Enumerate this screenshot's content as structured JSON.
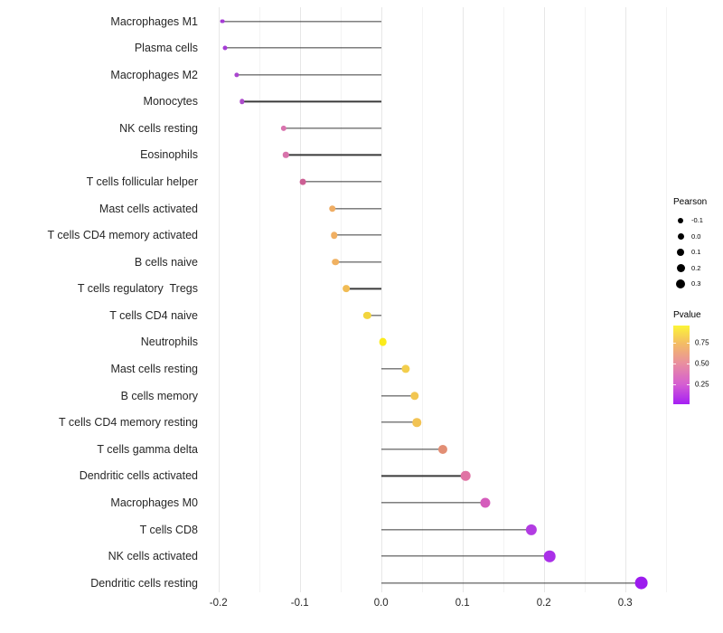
{
  "chart_data": {
    "type": "lollipop",
    "orientation": "horizontal",
    "title": "",
    "xlabel": "",
    "ylabel": "",
    "xlim": [
      -0.215,
      0.36
    ],
    "grid": "vertical only, light gray, major every 0.1 with minor every 0.05",
    "x_ticks": [
      {
        "label": "-0.2",
        "value": -0.2
      },
      {
        "label": "-0.1",
        "value": -0.1
      },
      {
        "label": "0.0",
        "value": 0.0
      },
      {
        "label": "0.1",
        "value": 0.1
      },
      {
        "label": "0.2",
        "value": 0.2
      },
      {
        "label": "0.3",
        "value": 0.3
      }
    ],
    "grid_values": [
      -0.2,
      -0.15,
      -0.1,
      -0.05,
      0.0,
      0.05,
      0.1,
      0.15,
      0.2,
      0.25,
      0.3,
      0.35
    ],
    "stem_color": "#3b3b3b",
    "points": [
      {
        "label": "Macrophages M1",
        "pearson": -0.195,
        "pvalue": 0.1,
        "color": "#a63bd6"
      },
      {
        "label": "Plasma cells",
        "pearson": -0.192,
        "pvalue": 0.11,
        "color": "#a53cd5"
      },
      {
        "label": "Macrophages M2",
        "pearson": -0.178,
        "pvalue": 0.13,
        "color": "#aa46cf"
      },
      {
        "label": "Monocytes",
        "pearson": -0.171,
        "pvalue": 0.14,
        "color": "#ad4ccb"
      },
      {
        "label": "NK cells resting",
        "pearson": -0.12,
        "pvalue": 0.38,
        "color": "#d973ae"
      },
      {
        "label": "Eosinophils",
        "pearson": -0.117,
        "pvalue": 0.38,
        "color": "#d873ab"
      },
      {
        "label": "T cells follicular helper",
        "pearson": -0.096,
        "pvalue": 0.46,
        "color": "#cc5f94"
      },
      {
        "label": "Mast cells activated",
        "pearson": -0.06,
        "pvalue": 0.68,
        "color": "#efad64"
      },
      {
        "label": "T cells CD4 memory activated",
        "pearson": -0.058,
        "pvalue": 0.68,
        "color": "#f0af62"
      },
      {
        "label": "B cells naive",
        "pearson": -0.056,
        "pvalue": 0.69,
        "color": "#f0b161"
      },
      {
        "label": "T cells regulatory  Tregs",
        "pearson": -0.043,
        "pvalue": 0.73,
        "color": "#f1bc55"
      },
      {
        "label": "T cells CD4 naive",
        "pearson": -0.017,
        "pvalue": 0.82,
        "color": "#f2d53e"
      },
      {
        "label": "Neutrophils",
        "pearson": 0.002,
        "pvalue": 0.93,
        "color": "#fbeb1b"
      },
      {
        "label": "Mast cells resting",
        "pearson": 0.03,
        "pvalue": 0.78,
        "color": "#f3ce4c"
      },
      {
        "label": "B cells memory",
        "pearson": 0.041,
        "pvalue": 0.75,
        "color": "#f2c652"
      },
      {
        "label": "T cells CD4 memory resting",
        "pearson": 0.044,
        "pvalue": 0.74,
        "color": "#f2c354"
      },
      {
        "label": "T cells gamma delta",
        "pearson": 0.076,
        "pvalue": 0.57,
        "color": "#e28e74"
      },
      {
        "label": "Dendritic cells activated",
        "pearson": 0.104,
        "pvalue": 0.44,
        "color": "#e073a4"
      },
      {
        "label": "Macrophages M0",
        "pearson": 0.128,
        "pvalue": 0.33,
        "color": "#d55cbc"
      },
      {
        "label": "T cells CD8",
        "pearson": 0.185,
        "pvalue": 0.16,
        "color": "#b23ce2"
      },
      {
        "label": "NK cells activated",
        "pearson": 0.207,
        "pvalue": 0.12,
        "color": "#aa30e8"
      },
      {
        "label": "Dendritic cells resting",
        "pearson": 0.32,
        "pvalue": 0.03,
        "color": "#9c1bee"
      }
    ]
  },
  "legends": {
    "size": {
      "title": "Pearson",
      "dot_color": "#000000",
      "entries": [
        {
          "label": "-0.1",
          "r": 3.0
        },
        {
          "label": "0.0",
          "r": 3.5
        },
        {
          "label": "0.1",
          "r": 4.0
        },
        {
          "label": "0.2",
          "r": 4.5
        },
        {
          "label": "0.3",
          "r": 5.0
        }
      ]
    },
    "color": {
      "title": "Pvalue",
      "ticks": [
        {
          "label": "0.75",
          "pos_pct": 22
        },
        {
          "label": "0.50",
          "pos_pct": 48
        },
        {
          "label": "0.25",
          "pos_pct": 75
        }
      ],
      "gradient_top_to_bottom": [
        {
          "color": "#fcf438",
          "pos_pct": 0
        },
        {
          "color": "#f4be63",
          "pos_pct": 22
        },
        {
          "color": "#e98f9f",
          "pos_pct": 48
        },
        {
          "color": "#d55ed2",
          "pos_pct": 75
        },
        {
          "color": "#a51ff4",
          "pos_pct": 100
        }
      ]
    }
  }
}
